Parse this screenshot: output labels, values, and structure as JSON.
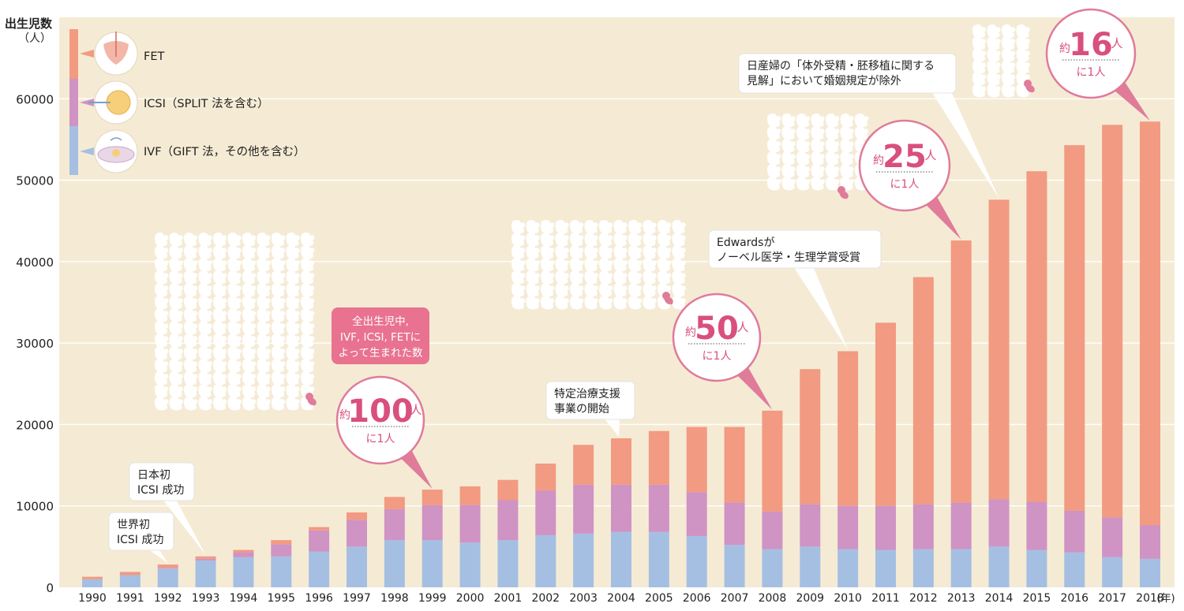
{
  "chart_data": {
    "type": "bar",
    "stacked": true,
    "ylabel": "出生児数\n（人）",
    "xlabel_unit": "(年)",
    "ylim": [
      0,
      70000
    ],
    "yticks": [
      0,
      10000,
      20000,
      30000,
      40000,
      50000,
      60000
    ],
    "grid": true,
    "categories": [
      "1990",
      "1991",
      "1992",
      "1993",
      "1994",
      "1995",
      "1996",
      "1997",
      "1998",
      "1999",
      "2000",
      "2001",
      "2002",
      "2003",
      "2004",
      "2005",
      "2006",
      "2007",
      "2008",
      "2009",
      "2010",
      "2011",
      "2012",
      "2013",
      "2014",
      "2015",
      "2016",
      "2017",
      "2018"
    ],
    "series": [
      {
        "name": "IVF（GIFT 法，その他を含む）",
        "color": "#a5bfe3",
        "values": [
          1000,
          1500,
          2300,
          3300,
          3700,
          3800,
          4400,
          5000,
          5800,
          5800,
          5500,
          5800,
          6400,
          6600,
          6800,
          6800,
          6300,
          5200,
          4700,
          5000,
          4700,
          4600,
          4700,
          4700,
          5000,
          4600,
          4300,
          3700,
          3500
        ]
      },
      {
        "name": "ICSI（SPLIT 法を含む）",
        "color": "#cf93c4",
        "values": [
          0,
          0,
          100,
          200,
          600,
          1500,
          2600,
          3300,
          3800,
          4300,
          4600,
          4900,
          5500,
          6000,
          5800,
          5800,
          5400,
          5200,
          4600,
          5200,
          5300,
          5400,
          5500,
          5700,
          5800,
          5900,
          5100,
          4900,
          4100
        ]
      },
      {
        "name": "FET",
        "color": "#f29a82",
        "values": [
          300,
          400,
          400,
          300,
          300,
          500,
          400,
          900,
          1500,
          1900,
          2300,
          2500,
          3300,
          4900,
          5700,
          6600,
          8000,
          9300,
          12400,
          16600,
          19000,
          22500,
          27900,
          32200,
          36800,
          40600,
          44900,
          48200,
          49600
        ]
      }
    ],
    "legend": {
      "position": "top-left",
      "items": [
        "FET",
        "ICSI（SPLIT 法を含む）",
        "IVF（GIFT 法，その他を含む）"
      ]
    },
    "annotations": [
      {
        "text": "世界初\nICSI 成功",
        "year": "1992"
      },
      {
        "text": "日本初\nICSI 成功",
        "year": "1993"
      },
      {
        "text": "全出生児中,\nIVF, ICSI, FETに\nよって生まれた数"
      },
      {
        "text": "特定治療支援\n事業の開始",
        "year": "2004"
      },
      {
        "text": "Edwardsが\nノーベル医学・生理学賞受賞",
        "year": "2010"
      },
      {
        "text": "日産婦の「体外受精・胚移植に関する\n見解」において婚姻規定が除外",
        "year": "2014"
      }
    ],
    "ratio_callouts": [
      {
        "prefix": "約",
        "number": "100",
        "suffix": "人",
        "sub": "に1人",
        "year": "1999"
      },
      {
        "prefix": "約",
        "number": "50",
        "suffix": "人",
        "sub": "に1人",
        "year": "2008"
      },
      {
        "prefix": "約",
        "number": "25",
        "suffix": "人",
        "sub": "に1人",
        "year": "2013"
      },
      {
        "prefix": "約",
        "number": "16",
        "suffix": "人",
        "sub": "に1人",
        "year": "2018"
      }
    ],
    "colors": {
      "background": "#f5ebd4",
      "grid": "#ffffff",
      "callout_border": "#e07b9a",
      "callout_text": "#d94f7d",
      "pink_box": "#e8728f"
    }
  }
}
